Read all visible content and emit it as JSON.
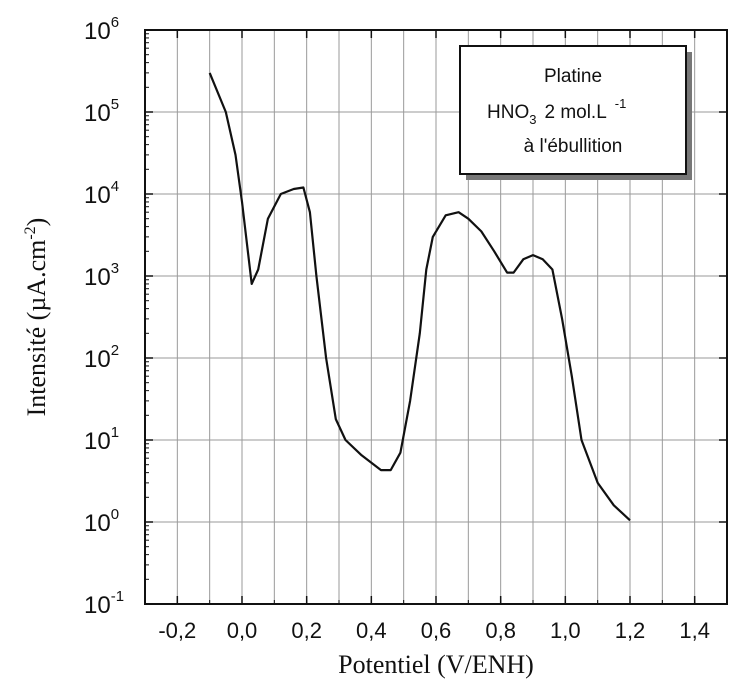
{
  "chart_data": {
    "type": "line",
    "xlabel": "Potentiel (V/ENH)",
    "ylabel": "Intensité (µA.cm-2)",
    "ylabel_base": "Intensité (µA.cm",
    "ylabel_exp": "-2",
    "ylabel_close": ")",
    "xlim": [
      -0.3,
      1.5
    ],
    "ylim": [
      0.1,
      1000000
    ],
    "yscale": "log",
    "grid": true,
    "x_ticks": [
      -0.2,
      0.0,
      0.2,
      0.4,
      0.6,
      0.8,
      1.0,
      1.2,
      1.4
    ],
    "x_tick_labels": [
      "-0,2",
      "0,0",
      "0,2",
      "0,4",
      "0,6",
      "0,8",
      "1,0",
      "1,2",
      "1,4"
    ],
    "y_tick_base": "10",
    "y_tick_exponents": [
      "-1",
      "0",
      "1",
      "2",
      "3",
      "4",
      "5",
      "6"
    ],
    "legend_placement": "top-right",
    "annotation": {
      "line1": "Platine",
      "line2_main": "HNO",
      "line2_sub": "3",
      "line2_rest": "2 mol.L",
      "line2_exp": "-1",
      "line3": "à l'ébullition"
    },
    "series": [
      {
        "color": "#111111",
        "points": [
          [
            -0.1,
            300000
          ],
          [
            -0.05,
            100000
          ],
          [
            -0.02,
            30000
          ],
          [
            0.0,
            8000
          ],
          [
            0.03,
            800
          ],
          [
            0.05,
            1200
          ],
          [
            0.08,
            5000
          ],
          [
            0.12,
            10000
          ],
          [
            0.16,
            11500
          ],
          [
            0.19,
            12000
          ],
          [
            0.21,
            6000
          ],
          [
            0.23,
            1000
          ],
          [
            0.26,
            100
          ],
          [
            0.29,
            18
          ],
          [
            0.32,
            10
          ],
          [
            0.37,
            6.5
          ],
          [
            0.43,
            4.3
          ],
          [
            0.46,
            4.3
          ],
          [
            0.49,
            7
          ],
          [
            0.52,
            30
          ],
          [
            0.55,
            200
          ],
          [
            0.57,
            1200
          ],
          [
            0.59,
            3000
          ],
          [
            0.63,
            5500
          ],
          [
            0.67,
            6000
          ],
          [
            0.7,
            5000
          ],
          [
            0.74,
            3500
          ],
          [
            0.78,
            2000
          ],
          [
            0.82,
            1100
          ],
          [
            0.84,
            1100
          ],
          [
            0.87,
            1600
          ],
          [
            0.9,
            1800
          ],
          [
            0.93,
            1600
          ],
          [
            0.96,
            1200
          ],
          [
            0.99,
            300
          ],
          [
            1.02,
            60
          ],
          [
            1.05,
            10
          ],
          [
            1.1,
            3
          ],
          [
            1.15,
            1.6
          ],
          [
            1.2,
            1.05
          ]
        ]
      }
    ]
  }
}
